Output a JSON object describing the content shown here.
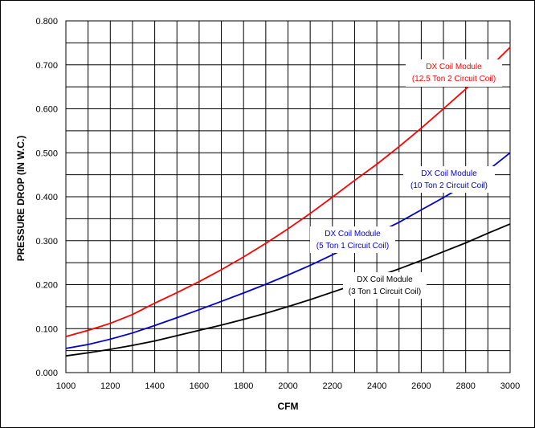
{
  "chart_data": {
    "type": "line",
    "title": "",
    "xlabel": "CFM",
    "ylabel": "PRESSURE DROP (IN W.C.)",
    "xlim": [
      1000,
      3000
    ],
    "ylim": [
      0,
      0.8
    ],
    "x_ticks": [
      1000,
      1200,
      1400,
      1600,
      1800,
      2000,
      2200,
      2400,
      2600,
      2800,
      3000
    ],
    "x_tick_labels": [
      "1000",
      "1200",
      "1400",
      "1600",
      "1800",
      "2000",
      "2200",
      "2400",
      "2600",
      "2800",
      "3000"
    ],
    "y_ticks": [
      0,
      0.1,
      0.2,
      0.3,
      0.4,
      0.5,
      0.6,
      0.7,
      0.8
    ],
    "y_tick_labels": [
      "0.000",
      "0.100",
      "0.200",
      "0.300",
      "0.400",
      "0.500",
      "0.600",
      "0.700",
      "0.800"
    ],
    "grid": true,
    "series": [
      {
        "name": "DX Coil Module (12.5 Ton 2 Circuit Coil)",
        "label_lines": [
          "DX Coil Module",
          "(12.5 Ton 2 Circuit Coil)"
        ],
        "color": "#ff0000",
        "x": [
          1000,
          1100,
          1200,
          1300,
          1400,
          1500,
          1600,
          1700,
          1800,
          1900,
          2000,
          2100,
          2200,
          2300,
          2400,
          2500,
          2600,
          2700,
          2800,
          2900,
          3000
        ],
        "values": [
          0.082,
          0.096,
          0.112,
          0.132,
          0.158,
          0.182,
          0.207,
          0.234,
          0.263,
          0.294,
          0.327,
          0.362,
          0.399,
          0.437,
          0.474,
          0.514,
          0.556,
          0.6,
          0.645,
          0.69,
          0.74
        ]
      },
      {
        "name": "DX Coil Module (10 Ton 2 Circuit Coil)",
        "label_lines": [
          "DX Coil Module",
          "(10 Ton 2 Circuit Coil)"
        ],
        "color": "#0000cc",
        "x": [
          1000,
          1100,
          1200,
          1300,
          1400,
          1500,
          1600,
          1700,
          1800,
          1900,
          2000,
          2100,
          2200,
          2300,
          2400,
          2500,
          2600,
          2700,
          2800,
          2900,
          3000
        ],
        "values": [
          0.055,
          0.064,
          0.076,
          0.09,
          0.107,
          0.125,
          0.143,
          0.162,
          0.181,
          0.201,
          0.222,
          0.244,
          0.268,
          0.292,
          0.317,
          0.342,
          0.37,
          0.398,
          0.428,
          0.46,
          0.5
        ]
      },
      {
        "name": "DX Coil Module (5 Ton 1 Circuit Coil)",
        "label_lines": [
          "DX Coil Module",
          "(5 Ton 1 Circuit Coil)"
        ],
        "color": "#0000cc",
        "x": [],
        "values": []
      },
      {
        "name": "DX Coil Module (3 Ton 1 Circuit Coil)",
        "label_lines": [
          "DX Coil Module",
          "(3 Ton 1 Circuit Coil)"
        ],
        "color": "#000000",
        "x": [
          1000,
          1100,
          1200,
          1300,
          1400,
          1500,
          1600,
          1700,
          1800,
          1900,
          2000,
          2100,
          2200,
          2300,
          2400,
          2500,
          2600,
          2700,
          2800,
          2900,
          3000
        ],
        "values": [
          0.038,
          0.045,
          0.053,
          0.062,
          0.072,
          0.084,
          0.096,
          0.108,
          0.121,
          0.135,
          0.15,
          0.166,
          0.183,
          0.2,
          0.218,
          0.236,
          0.255,
          0.275,
          0.295,
          0.317,
          0.338
        ]
      }
    ]
  }
}
